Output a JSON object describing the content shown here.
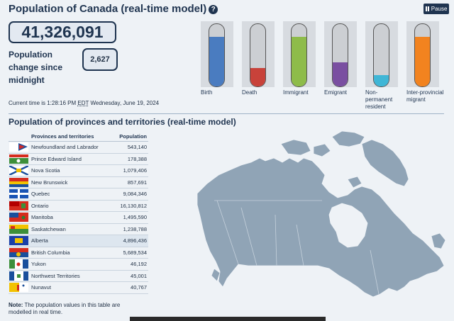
{
  "header": {
    "title": "Population of Canada (real-time model)",
    "help_icon": "?",
    "pause_label": "Pause"
  },
  "population": "41,326,091",
  "change": {
    "label": "Population change since midnight",
    "value": "2,627"
  },
  "time": {
    "prefix": "Current time is 1:28:16 PM ",
    "zone": "EDT",
    "suffix": " Wednesday, June 19, 2024"
  },
  "gauges": [
    {
      "label": "Birth",
      "color": "#4a7cc0",
      "level": 0.8
    },
    {
      "label": "Death",
      "color": "#c8423a",
      "level": 0.3
    },
    {
      "label": "Immigrant",
      "color": "#8ebc4a",
      "level": 0.8
    },
    {
      "label": "Emigrant",
      "color": "#7a4fa1",
      "level": 0.39
    },
    {
      "label": "Non-permanent resident",
      "color": "#3fb6d6",
      "level": 0.18
    },
    {
      "label": "Inter-provincial migrant",
      "color": "#f2831f",
      "level": 0.8
    }
  ],
  "provinces": {
    "title": "Population of provinces and territories (real-time model)",
    "col_name": "Provinces and territories",
    "col_pop": "Population",
    "rows": [
      {
        "name": "Newfoundland and Labrador",
        "pop": "543,140"
      },
      {
        "name": "Prince Edward Island",
        "pop": "178,388"
      },
      {
        "name": "Nova Scotia",
        "pop": "1,079,406"
      },
      {
        "name": "New Brunswick",
        "pop": "857,691"
      },
      {
        "name": "Quebec",
        "pop": "9,084,346"
      },
      {
        "name": "Ontario",
        "pop": "16,130,812"
      },
      {
        "name": "Manitoba",
        "pop": "1,495,590"
      },
      {
        "name": "Saskatchewan",
        "pop": "1,238,788"
      },
      {
        "name": "Alberta",
        "pop": "4,896,436"
      },
      {
        "name": "British Columbia",
        "pop": "5,689,534"
      },
      {
        "name": "Yukon",
        "pop": "46,192"
      },
      {
        "name": "Northwest Territories",
        "pop": "45,001"
      },
      {
        "name": "Nunavut",
        "pop": "40,767"
      }
    ],
    "note_bold": "Note:",
    "note_text": " The population values in this table are modelled in real time."
  },
  "colors": {
    "accent": "#1f3450",
    "map": "#90a4b6"
  }
}
